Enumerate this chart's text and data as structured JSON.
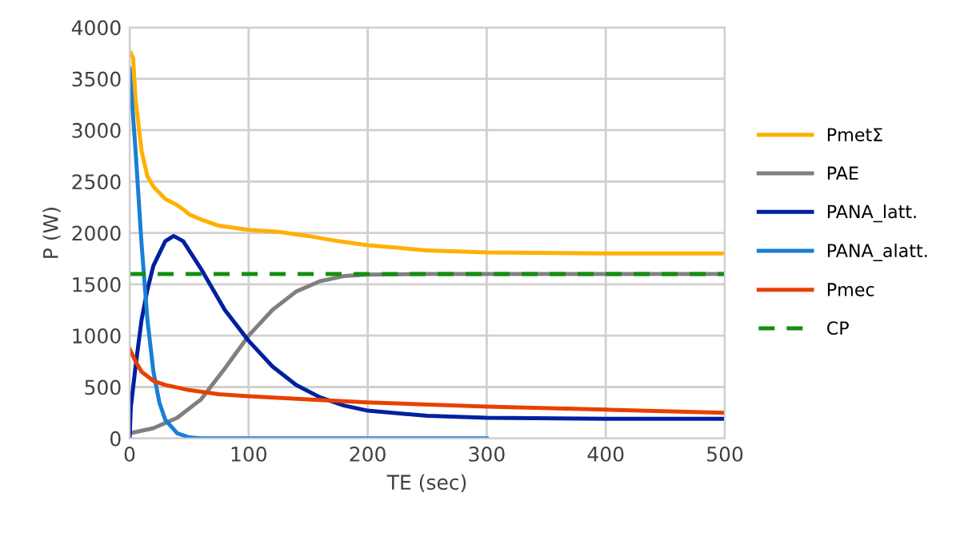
{
  "chart_data": {
    "type": "line",
    "xlabel": "TE (sec)",
    "ylabel": "P (W)",
    "xlim": [
      0,
      500
    ],
    "ylim": [
      0,
      4000
    ],
    "xticks": [
      0,
      100,
      200,
      300,
      400,
      500
    ],
    "yticks": [
      0,
      500,
      1000,
      1500,
      2000,
      2500,
      3000,
      3500,
      4000
    ],
    "grid": true,
    "legend": "right",
    "marker": "none",
    "series": [
      {
        "name": "PmetΣ",
        "color": "#ffb000",
        "x": [
          1,
          3,
          5,
          10,
          15,
          20,
          30,
          40,
          45,
          50,
          60,
          75,
          100,
          125,
          150,
          175,
          200,
          250,
          300,
          400,
          500
        ],
        "values": [
          3750,
          3700,
          3300,
          2800,
          2550,
          2450,
          2330,
          2270,
          2230,
          2180,
          2130,
          2070,
          2030,
          2010,
          1970,
          1920,
          1880,
          1830,
          1810,
          1800,
          1800
        ]
      },
      {
        "name": "PAE",
        "color": "#808080",
        "x": [
          0,
          20,
          40,
          60,
          80,
          100,
          120,
          140,
          160,
          180,
          200,
          250,
          300,
          400,
          500
        ],
        "values": [
          50,
          100,
          200,
          380,
          680,
          1000,
          1250,
          1430,
          1530,
          1580,
          1595,
          1600,
          1600,
          1600,
          1600
        ]
      },
      {
        "name": "PANA_latt.",
        "color": "#0020a0",
        "x": [
          0,
          1,
          5,
          10,
          15,
          20,
          30,
          37,
          45,
          60,
          80,
          100,
          120,
          140,
          160,
          180,
          200,
          250,
          300,
          400,
          500
        ],
        "values": [
          0,
          300,
          700,
          1150,
          1450,
          1680,
          1920,
          1970,
          1920,
          1650,
          1250,
          950,
          700,
          520,
          400,
          320,
          270,
          220,
          200,
          190,
          190
        ]
      },
      {
        "name": "PANA_alatt.",
        "color": "#1a7fd4",
        "x": [
          0,
          5,
          10,
          15,
          20,
          25,
          30,
          40,
          50,
          60,
          300
        ],
        "values": [
          3600,
          2800,
          1900,
          1150,
          650,
          350,
          180,
          50,
          10,
          0,
          0
        ]
      },
      {
        "name": "Pmec",
        "color": "#e84000",
        "x": [
          0,
          5,
          10,
          20,
          30,
          50,
          75,
          100,
          150,
          200,
          300,
          400,
          500
        ],
        "values": [
          870,
          750,
          650,
          560,
          520,
          470,
          430,
          410,
          380,
          350,
          310,
          280,
          250
        ]
      },
      {
        "name": "CP",
        "color": "#109010",
        "line_style": "dashed",
        "x": [
          0,
          500
        ],
        "values": [
          1600,
          1600
        ]
      }
    ]
  }
}
